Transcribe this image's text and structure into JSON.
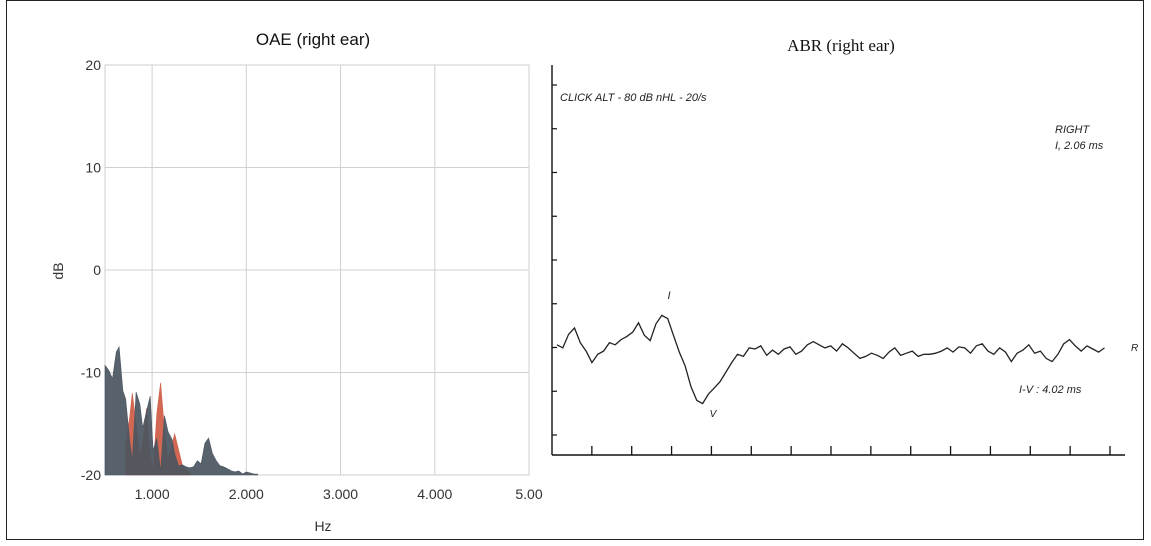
{
  "chart_data": [
    {
      "type": "area",
      "title": "OAE (right ear)",
      "xlabel": "Hz",
      "ylabel": "dB",
      "xlim": [
        500,
        5000
      ],
      "ylim": [
        -20,
        20
      ],
      "grid": true,
      "x_ticks": [
        1000,
        2000,
        3000,
        4000,
        5000
      ],
      "x_tick_labels": [
        "1.000",
        "2.000",
        "3.000",
        "4.000",
        "5.00"
      ],
      "y_ticks": [
        -20,
        -10,
        0,
        10,
        20
      ],
      "y_tick_labels": [
        "-20",
        "-10",
        "0",
        "10",
        "20"
      ],
      "colors": {
        "noise": "#4a5560",
        "emission": "#d0604a",
        "grid": "#d0d0d0"
      },
      "series": [
        {
          "x": [
            500,
            540,
            580,
            620,
            650,
            690,
            720,
            760,
            790,
            830,
            870,
            900,
            940,
            980,
            1010,
            1050,
            1090,
            1130,
            1170,
            1210,
            1240,
            1280,
            1320,
            1360,
            1400,
            1440,
            1480,
            1520,
            1560,
            1600,
            1640,
            1680,
            1720,
            1760,
            1800,
            1840,
            1880,
            1920,
            1960,
            2000,
            2040,
            2080,
            2120
          ],
          "values": [
            -9.3,
            -9.8,
            -10.6,
            -8.0,
            -7.5,
            -11.8,
            -12.6,
            -16.5,
            -18.6,
            -11.9,
            -13.1,
            -15.4,
            -13.8,
            -12.3,
            -17.6,
            -16.4,
            -19.7,
            -14.2,
            -15.8,
            -16.5,
            -17.9,
            -19.1,
            -19.0,
            -19.2,
            -19.3,
            -19.2,
            -18.6,
            -18.9,
            -16.9,
            -16.4,
            -17.9,
            -18.6,
            -19.1,
            -19.2,
            -19.4,
            -19.6,
            -19.7,
            -19.6,
            -19.9,
            -19.7,
            -19.8,
            -19.9,
            -19.9
          ]
        },
        {
          "x": [
            720,
            760,
            790,
            830,
            870,
            900,
            940,
            980,
            1010,
            1050,
            1090,
            1130,
            1170,
            1210,
            1240,
            1280,
            1320,
            1360,
            1400
          ],
          "values": [
            -17.0,
            -14.5,
            -12.0,
            -15.0,
            -18.2,
            -17.0,
            -13.5,
            -18.0,
            -19.6,
            -14.0,
            -11.0,
            -15.5,
            -18.5,
            -17.0,
            -16.0,
            -17.5,
            -19.0,
            -19.5,
            -19.8
          ]
        }
      ]
    },
    {
      "type": "line",
      "title": "ABR (right ear)",
      "xlabel": "",
      "ylabel": "",
      "grid": false,
      "annotation_stimulus": "CLICK ALT - 80 dB nHL - 20/s",
      "annotation_side": "RIGHT",
      "annotation_latency": "I, 2.06 ms",
      "annotation_interval": "I-V : 4.02 ms",
      "wave_label_I": "I",
      "wave_label_V": "V",
      "trace_end_label": "R",
      "xlim": [
        0,
        14.5
      ],
      "ylim": [
        -11,
        11
      ],
      "x": [
        0,
        0.15,
        0.3,
        0.45,
        0.6,
        0.75,
        0.9,
        1.05,
        1.2,
        1.35,
        1.5,
        1.65,
        1.8,
        1.95,
        2.1,
        2.25,
        2.4,
        2.55,
        2.7,
        2.85,
        3.0,
        3.15,
        3.3,
        3.45,
        3.6,
        3.75,
        3.9,
        4.05,
        4.2,
        4.35,
        4.5,
        4.65,
        4.8,
        4.95,
        5.1,
        5.25,
        5.4,
        5.55,
        5.7,
        5.85,
        6.0,
        6.15,
        6.3,
        6.45,
        6.6,
        6.75,
        6.9,
        7.05,
        7.2,
        7.35,
        7.5,
        7.65,
        7.8,
        7.95,
        8.1,
        8.25,
        8.4,
        8.55,
        8.7,
        8.85,
        9.0,
        9.15,
        9.3,
        9.45,
        9.6,
        9.75,
        9.9,
        10.05,
        10.2,
        10.35,
        10.5,
        10.65,
        10.8,
        10.95,
        11.1,
        11.25,
        11.4,
        11.55,
        11.7,
        11.85,
        12.0,
        12.15,
        12.3,
        12.45,
        12.6,
        12.75,
        12.9,
        13.05,
        13.2,
        13.35,
        13.5,
        13.65,
        13.8,
        13.95,
        14.1
      ],
      "values": [
        0.4,
        0.1,
        1.4,
        2.0,
        0.6,
        -0.2,
        -1.3,
        -0.5,
        -0.2,
        0.6,
        0.4,
        0.9,
        1.2,
        1.6,
        2.5,
        1.3,
        0.8,
        2.4,
        3.2,
        2.9,
        1.3,
        -0.3,
        -1.6,
        -3.6,
        -4.9,
        -5.2,
        -4.3,
        -3.7,
        -3.1,
        -2.2,
        -1.3,
        -0.5,
        -0.7,
        0.1,
        0.0,
        0.3,
        -0.6,
        -0.1,
        -0.5,
        0.0,
        0.2,
        -0.5,
        -0.2,
        0.4,
        0.7,
        0.4,
        0.1,
        0.3,
        -0.2,
        0.5,
        0.1,
        -0.4,
        -0.9,
        -0.7,
        -0.4,
        -0.6,
        -0.9,
        -0.3,
        0.1,
        -0.6,
        -0.4,
        -0.2,
        -0.7,
        -0.5,
        -0.5,
        -0.4,
        -0.2,
        0.1,
        -0.3,
        0.2,
        0.1,
        -0.4,
        0.3,
        0.5,
        -0.2,
        -0.5,
        0.1,
        -0.3,
        -1.2,
        -0.4,
        -0.1,
        0.4,
        -0.4,
        -0.2,
        -0.9,
        -1.2,
        -0.5,
        0.5,
        0.9,
        0.3,
        -0.2,
        0.3,
        0.0,
        -0.3,
        0.1
      ],
      "x_tick_count": 14,
      "y_tick_count": 9
    }
  ]
}
